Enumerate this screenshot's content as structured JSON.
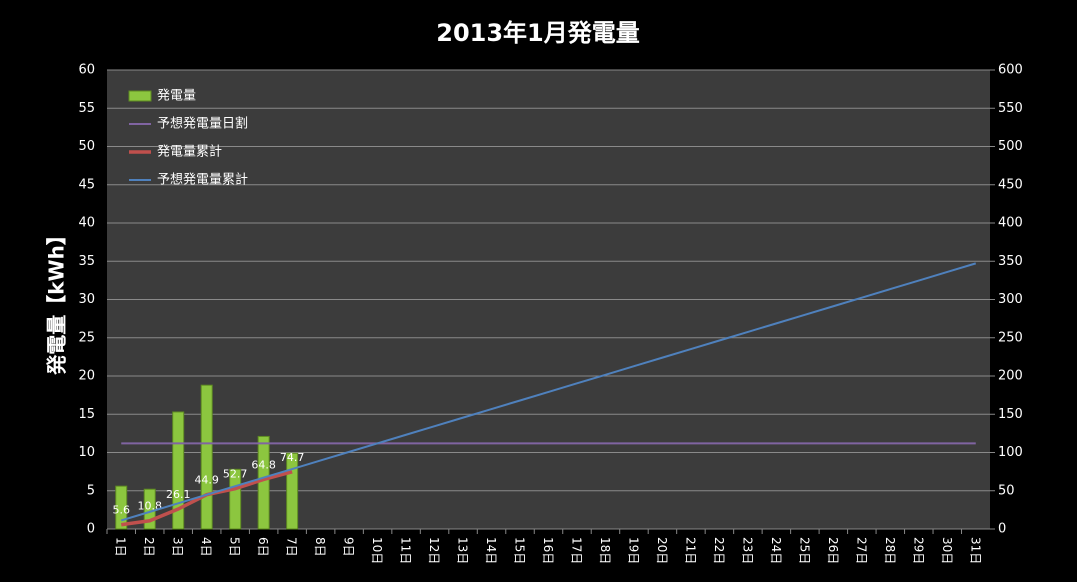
{
  "chart_data": {
    "type": "combo",
    "title": "2013年1月発電量",
    "y_label": "発電量【kWh】",
    "categories": [
      "1日",
      "2日",
      "3日",
      "4日",
      "5日",
      "6日",
      "7日",
      "8日",
      "9日",
      "10日",
      "11日",
      "12日",
      "13日",
      "14日",
      "15日",
      "16日",
      "17日",
      "18日",
      "19日",
      "20日",
      "21日",
      "22日",
      "23日",
      "24日",
      "25日",
      "26日",
      "27日",
      "28日",
      "29日",
      "30日",
      "31日"
    ],
    "series": [
      {
        "name": "発電量",
        "type": "bar",
        "color": "#8cc63f",
        "axis": "y",
        "values": [
          5.6,
          5.2,
          15.3,
          18.8,
          7.8,
          12.1,
          9.9,
          null,
          null,
          null,
          null,
          null,
          null,
          null,
          null,
          null,
          null,
          null,
          null,
          null,
          null,
          null,
          null,
          null,
          null,
          null,
          null,
          null,
          null,
          null,
          null
        ]
      },
      {
        "name": "予想発電量日割",
        "type": "line",
        "color": "#8064a2",
        "axis": "y",
        "values": [
          11.2,
          11.2,
          11.2,
          11.2,
          11.2,
          11.2,
          11.2,
          11.2,
          11.2,
          11.2,
          11.2,
          11.2,
          11.2,
          11.2,
          11.2,
          11.2,
          11.2,
          11.2,
          11.2,
          11.2,
          11.2,
          11.2,
          11.2,
          11.2,
          11.2,
          11.2,
          11.2,
          11.2,
          11.2,
          11.2,
          11.2
        ]
      },
      {
        "name": "発電量累計",
        "type": "line",
        "color": "#c0504d",
        "axis": "y2",
        "labels": true,
        "values": [
          5.6,
          10.8,
          26.1,
          44.9,
          52.7,
          64.8,
          74.7,
          null,
          null,
          null,
          null,
          null,
          null,
          null,
          null,
          null,
          null,
          null,
          null,
          null,
          null,
          null,
          null,
          null,
          null,
          null,
          null,
          null,
          null,
          null,
          null
        ]
      },
      {
        "name": "予想発電量累計",
        "type": "line",
        "color": "#4f81bd",
        "axis": "y2",
        "values": [
          11.2,
          22.4,
          33.6,
          44.8,
          56,
          67.2,
          78.4,
          89.6,
          100.8,
          112,
          123.2,
          134.4,
          145.6,
          156.8,
          168,
          179.2,
          190.4,
          201.6,
          212.8,
          224,
          235.2,
          246.4,
          257.6,
          268.8,
          280,
          291.2,
          302.4,
          313.6,
          324.8,
          336,
          347.2
        ]
      }
    ],
    "ylim": [
      0,
      60
    ],
    "yticks": [
      0,
      5,
      10,
      15,
      20,
      25,
      30,
      35,
      40,
      45,
      50,
      55,
      60
    ],
    "y2lim": [
      0,
      600
    ],
    "y2ticks": [
      0,
      50,
      100,
      150,
      200,
      250,
      300,
      350,
      400,
      450,
      500,
      550,
      600
    ],
    "grid": true,
    "legend": "top-left"
  }
}
